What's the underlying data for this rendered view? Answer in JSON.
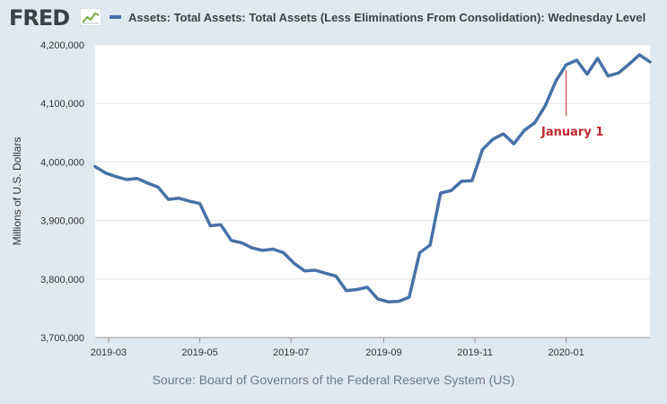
{
  "header": {
    "logo_text": "FRED",
    "logo_icon": "chart-line-icon"
  },
  "source": "Source: Board of Governors of the Federal Reserve System (US)",
  "colors": {
    "background": "#e1e9f0",
    "plot_background": "#ffffff",
    "series": "#4572a7",
    "annotation": "#c0272d",
    "grid": "#e6e6e6"
  },
  "chart_data": {
    "type": "line",
    "title": "",
    "xlabel": "",
    "ylabel": "Millions of U.S. Dollars",
    "grid": "horizontal",
    "legend_position": "top",
    "xlim": [
      "2019-02-20",
      "2020-02-26"
    ],
    "ylim": [
      3700000,
      4200000
    ],
    "y_ticks": [
      3700000,
      3800000,
      3900000,
      4000000,
      4100000,
      4200000
    ],
    "y_tick_labels": [
      "3,700,000",
      "3,800,000",
      "3,900,000",
      "4,000,000",
      "4,100,000",
      "4,200,000"
    ],
    "x_ticks": [
      "2019-03-01",
      "2019-05-01",
      "2019-07-01",
      "2019-09-01",
      "2019-11-01",
      "2020-01-01"
    ],
    "x_tick_labels": [
      "2019-03",
      "2019-05",
      "2019-07",
      "2019-09",
      "2019-11",
      "2020-01"
    ],
    "series": [
      {
        "name": "Assets: Total Assets: Total Assets (Less Eliminations From Consolidation): Wednesday Level",
        "x": [
          "2019-02-20",
          "2019-02-27",
          "2019-03-06",
          "2019-03-13",
          "2019-03-20",
          "2019-03-27",
          "2019-04-03",
          "2019-04-10",
          "2019-04-17",
          "2019-04-24",
          "2019-05-01",
          "2019-05-08",
          "2019-05-15",
          "2019-05-22",
          "2019-05-29",
          "2019-06-05",
          "2019-06-12",
          "2019-06-19",
          "2019-06-26",
          "2019-07-03",
          "2019-07-10",
          "2019-07-17",
          "2019-07-24",
          "2019-07-31",
          "2019-08-07",
          "2019-08-14",
          "2019-08-21",
          "2019-08-28",
          "2019-09-04",
          "2019-09-11",
          "2019-09-18",
          "2019-09-25",
          "2019-10-02",
          "2019-10-09",
          "2019-10-16",
          "2019-10-23",
          "2019-10-30",
          "2019-11-06",
          "2019-11-13",
          "2019-11-20",
          "2019-11-27",
          "2019-12-04",
          "2019-12-11",
          "2019-12-18",
          "2019-12-25",
          "2020-01-01",
          "2020-01-08",
          "2020-01-15",
          "2020-01-22",
          "2020-01-29",
          "2020-02-05",
          "2020-02-12",
          "2020-02-19",
          "2020-02-26"
        ],
        "y": [
          3992000,
          3981000,
          3975000,
          3970000,
          3972000,
          3964000,
          3957000,
          3936000,
          3938000,
          3933000,
          3929000,
          3891000,
          3893000,
          3866000,
          3862000,
          3853000,
          3849000,
          3851000,
          3845000,
          3827000,
          3814000,
          3815000,
          3810000,
          3805000,
          3780000,
          3782000,
          3786000,
          3766000,
          3761000,
          3762000,
          3769000,
          3845000,
          3858000,
          3947000,
          3951000,
          3967000,
          3968000,
          4021000,
          4039000,
          4048000,
          4031000,
          4054000,
          4067000,
          4096000,
          4138000,
          4166000,
          4174000,
          4150000,
          4177000,
          4147000,
          4152000,
          4167000,
          4183000,
          4171000
        ]
      }
    ],
    "annotations": [
      {
        "label": "January 1",
        "x": "2020-01-01"
      }
    ]
  }
}
